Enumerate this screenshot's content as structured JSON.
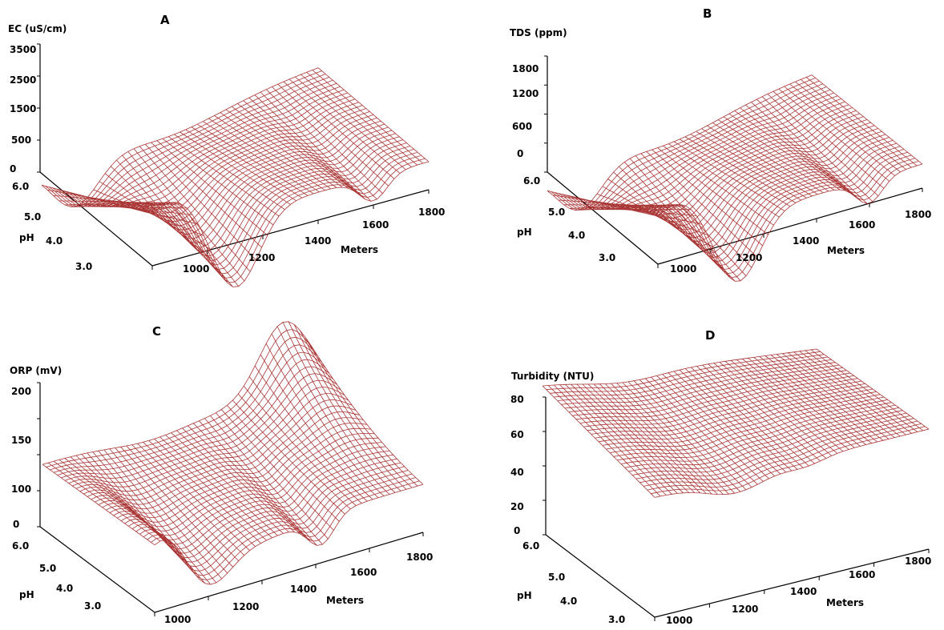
{
  "mesh_color": "#a52a2a",
  "panels": [
    {
      "label": "A",
      "z_title": "EC (uS/cm)",
      "z_ticks": [
        "3500",
        "2500",
        "1500",
        "500",
        "0"
      ],
      "ph_label": "pH",
      "ph_ticks": [
        "6.0",
        "5.0",
        "4.0",
        "3.0"
      ],
      "x_label": "Meters",
      "x_ticks": [
        "1000",
        "1200",
        "1400",
        "1600",
        "1800"
      ]
    },
    {
      "label": "B",
      "z_title": "TDS (ppm)",
      "z_ticks": [
        "1800",
        "1200",
        "600",
        "0"
      ],
      "ph_label": "pH",
      "ph_ticks": [
        "6.0",
        "5.0",
        "4.0",
        "3.0"
      ],
      "x_label": "Meters",
      "x_ticks": [
        "1000",
        "1200",
        "1400",
        "1600",
        "1800"
      ]
    },
    {
      "label": "C",
      "z_title": "ORP (mV)",
      "z_ticks": [
        "200",
        "150",
        "100",
        "0"
      ],
      "ph_label": "pH",
      "ph_ticks": [
        "6.0",
        "5.0",
        "4.0",
        "3.0"
      ],
      "x_label": "Meters",
      "x_ticks": [
        "1000",
        "1200",
        "1400",
        "1600",
        "1800"
      ]
    },
    {
      "label": "D",
      "z_title": "Turbidity (NTU)",
      "z_ticks": [
        "80",
        "60",
        "40",
        "20",
        "0"
      ],
      "ph_label": "pH",
      "ph_ticks": [
        "6.0",
        "5.0",
        "4.0",
        "3.0"
      ],
      "x_label": "Meters",
      "x_ticks": [
        "1000",
        "1200",
        "1400",
        "1600",
        "1800"
      ]
    }
  ],
  "chart_data": [
    {
      "type": "surface",
      "title": "A",
      "zlabel": "EC (uS/cm)",
      "ylabel": "pH",
      "xlabel": "Meters",
      "x_ticks": [
        1000,
        1200,
        1400,
        1600,
        1800
      ],
      "y_ticks": [
        6.0,
        5.0,
        4.0,
        3.0
      ],
      "z_ticks": [
        3500,
        2500,
        1500,
        500,
        0
      ]
    },
    {
      "type": "surface",
      "title": "B",
      "zlabel": "TDS (ppm)",
      "ylabel": "pH",
      "xlabel": "Meters",
      "x_ticks": [
        1000,
        1200,
        1400,
        1600,
        1800
      ],
      "y_ticks": [
        6.0,
        5.0,
        4.0,
        3.0
      ],
      "z_ticks": [
        1800,
        1200,
        600,
        0
      ]
    },
    {
      "type": "surface",
      "title": "C",
      "zlabel": "ORP (mV)",
      "ylabel": "pH",
      "xlabel": "Meters",
      "x_ticks": [
        1000,
        1200,
        1400,
        1600,
        1800
      ],
      "y_ticks": [
        6.0,
        5.0,
        4.0,
        3.0
      ],
      "z_ticks": [
        200,
        150,
        100,
        0
      ]
    },
    {
      "type": "surface",
      "title": "D",
      "zlabel": "Turbidity (NTU)",
      "ylabel": "pH",
      "xlabel": "Meters",
      "x_ticks": [
        1000,
        1200,
        1400,
        1600,
        1800
      ],
      "y_ticks": [
        6.0,
        5.0,
        4.0,
        3.0
      ],
      "z_ticks": [
        80,
        60,
        40,
        20,
        0
      ]
    }
  ]
}
